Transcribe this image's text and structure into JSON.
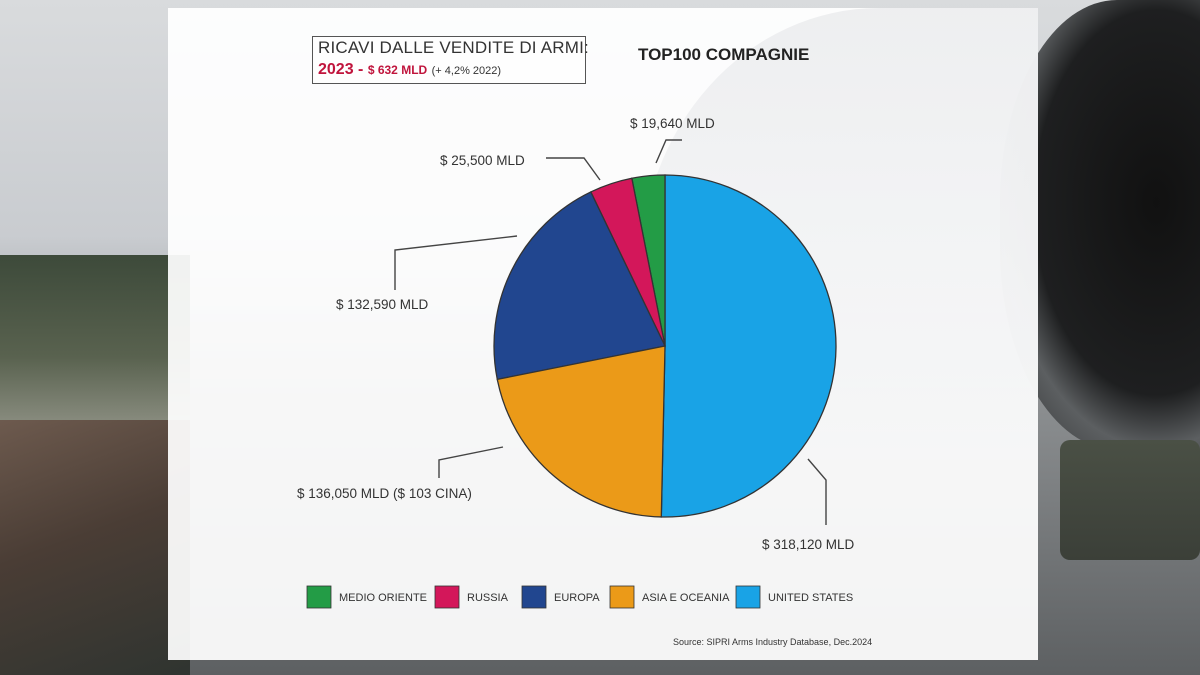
{
  "header": {
    "line1": "RICAVI DALLE VENDITE DI ARMI:",
    "year": "2023 -",
    "total": "$ 632 MLD",
    "delta": "(+ 4,2% 2022)"
  },
  "chart_data": {
    "type": "pie",
    "title": "TOP100 COMPAGNIE",
    "start": "12 o'clock",
    "direction": "counterclockwise from UNITED STATES",
    "series": [
      {
        "name": "UNITED STATES",
        "value": 318120,
        "label": "$ 318,120 MLD",
        "color": "#19a3e6"
      },
      {
        "name": "MEDIO ORIENTE",
        "value": 19640,
        "label": "$ 19,640 MLD",
        "color": "#239c46"
      },
      {
        "name": "RUSSIA",
        "value": 25500,
        "label": "$ 25,500 MLD",
        "color": "#d3175a"
      },
      {
        "name": "EUROPA",
        "value": 132590,
        "label": "$ 132,590 MLD",
        "color": "#21468f"
      },
      {
        "name": "ASIA E OCEANIA",
        "value": 136050,
        "label": "$ 136,050 MLD ($ 103 CINA)",
        "color": "#eb9a18"
      }
    ],
    "legend": {
      "placement": "bottom",
      "order": [
        "MEDIO ORIENTE",
        "RUSSIA",
        "EUROPA",
        "ASIA E OCEANIA",
        "UNITED STATES"
      ]
    }
  },
  "source": "Source: SIPRI Arms Industry Database, Dec.2024"
}
